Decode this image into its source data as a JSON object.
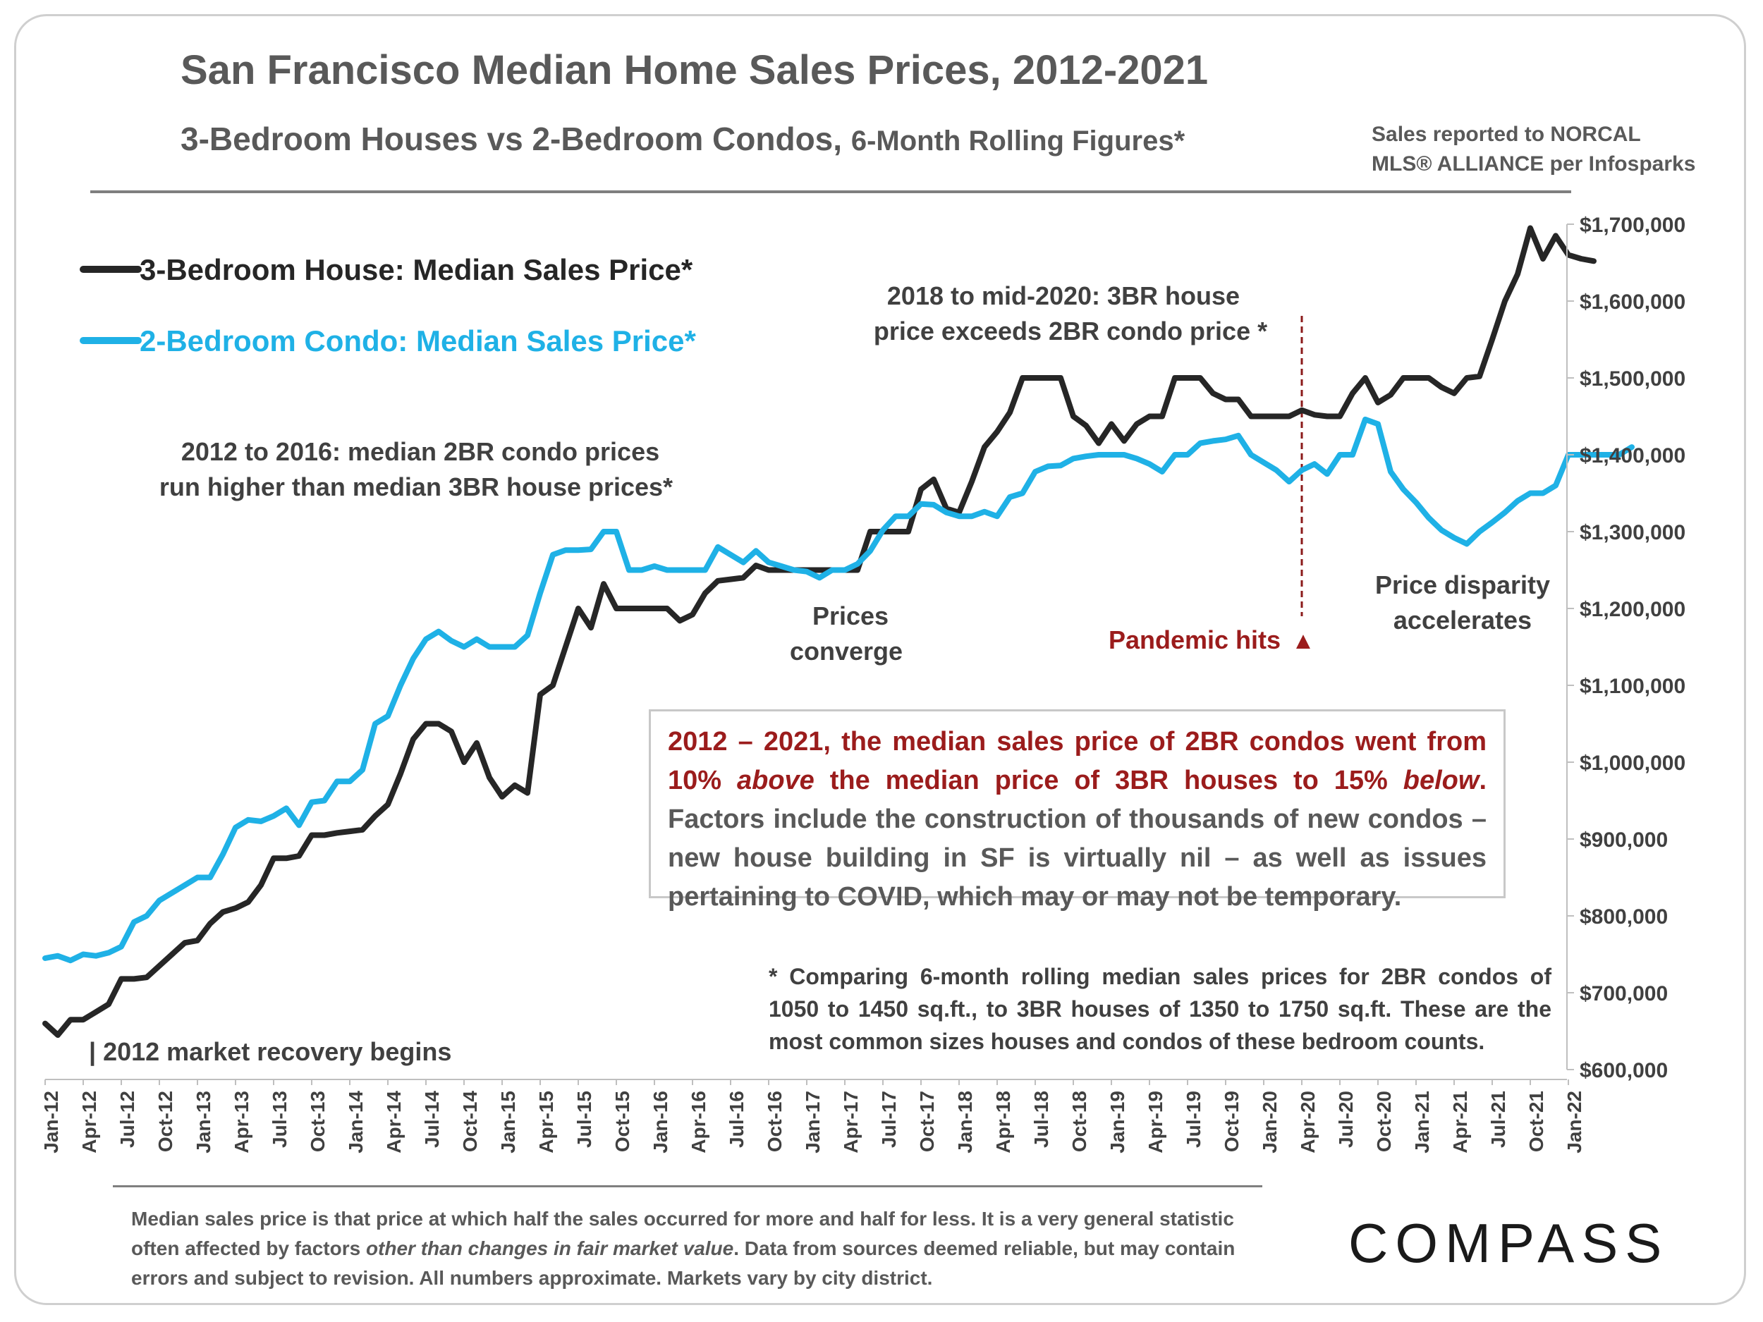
{
  "title": "San Francisco Median Home Sales Prices, 2012-2021",
  "subtitle_main": "3-Bedroom Houses vs 2-Bedroom Condos, ",
  "subtitle_small": "6-Month Rolling Figures*",
  "source_line1": "Sales reported to NORCAL",
  "source_line2": "MLS® ALLIANCE per Infosparks",
  "legend_house": "3-Bedroom House: Median Sales Price*",
  "legend_condo": "2-Bedroom Condo: Median Sales Price*",
  "annotations": {
    "condo_higher_1": "2012 to 2016: median 2BR condo prices",
    "condo_higher_2": "run higher than median 3BR house prices*",
    "house_exceeds_1": "2018 to mid-2020: 3BR house",
    "house_exceeds_2": "price exceeds 2BR condo price *",
    "converge_1": "Prices",
    "converge_2": "converge",
    "pandemic": "Pandemic hits",
    "pandemic_marker": "▲",
    "disparity_1": "Price disparity",
    "disparity_2": "accelerates",
    "recovery": "| 2012 market recovery begins"
  },
  "summary_box": {
    "red_part1": "2012 – 2021, the median sales price of 2BR condos went from 10% ",
    "red_above": "above",
    "red_part2": " the median price of 3BR houses to 15% ",
    "red_below": "below",
    "red_end": ".",
    "body": " Factors include the construction of thousands of new condos – new house building in SF is virtually nil – as well as issues pertaining to COVID, which may or may not be temporary."
  },
  "comparison_note": "* Comparing 6-month rolling median sales prices for 2BR condos of 1050 to 1450 sq.ft., to 3BR houses of 1350 to 1750 sq.ft. These are the most common sizes houses and condos of these bedroom counts.",
  "footnote_part1": "Median sales price is that price at which half the sales occurred for more and half for less. It is a very general statistic often affected by factors ",
  "footnote_italic": "other than changes in fair market value",
  "footnote_part2": ". Data from sources deemed reliable, but may contain errors and subject to revision. All numbers approximate. Markets vary by city district.",
  "logo": "COMPASS",
  "colors": {
    "house": "#262626",
    "condo": "#1fb1e6",
    "accent_red": "#9b1c1c",
    "pandemic_line": "#8b1a1a"
  },
  "chart_data": {
    "type": "line",
    "title": "San Francisco Median Home Sales Prices, 2012-2021",
    "xlabel": "",
    "ylabel": "",
    "ylim": [
      600000,
      1700000
    ],
    "yticks": [
      600000,
      700000,
      800000,
      900000,
      1000000,
      1100000,
      1200000,
      1300000,
      1400000,
      1500000,
      1600000,
      1700000
    ],
    "ytick_labels": [
      "$600,000",
      "$700,000",
      "$800,000",
      "$900,000",
      "$1,000,000",
      "$1,100,000",
      "$1,200,000",
      "$1,300,000",
      "$1,400,000",
      "$1,500,000",
      "$1,600,000",
      "$1,700,000"
    ],
    "x_tick_labels": [
      "Jan-12",
      "Apr-12",
      "Jul-12",
      "Oct-12",
      "Jan-13",
      "Apr-13",
      "Jul-13",
      "Oct-13",
      "Jan-14",
      "Apr-14",
      "Jul-14",
      "Oct-14",
      "Jan-15",
      "Apr-15",
      "Jul-15",
      "Oct-15",
      "Jan-16",
      "Apr-16",
      "Jul-16",
      "Oct-16",
      "Jan-17",
      "Apr-17",
      "Jul-17",
      "Oct-17",
      "Jan-18",
      "Apr-18",
      "Jul-18",
      "Oct-18",
      "Jan-19",
      "Apr-19",
      "Jul-19",
      "Oct-19",
      "Jan-20",
      "Apr-20",
      "Jul-20",
      "Oct-20",
      "Jan-21",
      "Apr-21",
      "Jul-21",
      "Oct-21",
      "Jan-22"
    ],
    "x_start": "Jan-12",
    "x_step": "1 month",
    "pandemic_month": "Apr-20",
    "series": [
      {
        "name": "3-Bedroom House: Median Sales Price*",
        "values": [
          660000,
          645000,
          665000,
          665000,
          675000,
          685000,
          718000,
          718000,
          720000,
          735000,
          750000,
          765000,
          768000,
          790000,
          805000,
          810000,
          818000,
          840000,
          875000,
          875000,
          878000,
          905000,
          905000,
          908000,
          910000,
          912000,
          930000,
          945000,
          985000,
          1030000,
          1050000,
          1050000,
          1040000,
          1000000,
          1025000,
          980000,
          955000,
          970000,
          960000,
          1088000,
          1100000,
          1150000,
          1200000,
          1175000,
          1232000,
          1200000,
          1200000,
          1200000,
          1200000,
          1200000,
          1184000,
          1192000,
          1220000,
          1236000,
          1238000,
          1240000,
          1256000,
          1250000,
          1250000,
          1250000,
          1250000,
          1250000,
          1250000,
          1250000,
          1250000,
          1300000,
          1300000,
          1300000,
          1300000,
          1355000,
          1368000,
          1330000,
          1325000,
          1365000,
          1410000,
          1430000,
          1455000,
          1500000,
          1500000,
          1500000,
          1500000,
          1450000,
          1438000,
          1415000,
          1440000,
          1418000,
          1440000,
          1450000,
          1450000,
          1500000,
          1500000,
          1500000,
          1480000,
          1472000,
          1472000,
          1450000,
          1450000,
          1450000,
          1450000,
          1458000,
          1452000,
          1450000,
          1450000,
          1480000,
          1500000,
          1468000,
          1478000,
          1500000,
          1500000,
          1500000,
          1488000,
          1480000,
          1500000,
          1502000,
          1550000,
          1600000,
          1635000,
          1695000,
          1655000,
          1685000,
          1660000,
          1655000,
          1652000
        ]
      },
      {
        "name": "2-Bedroom Condo: Median Sales Price*",
        "values": [
          745000,
          748000,
          742000,
          750000,
          748000,
          752000,
          760000,
          792000,
          800000,
          820000,
          830000,
          840000,
          850000,
          850000,
          880000,
          915000,
          925000,
          923000,
          930000,
          940000,
          918000,
          948000,
          950000,
          975000,
          975000,
          990000,
          1050000,
          1060000,
          1100000,
          1135000,
          1160000,
          1170000,
          1158000,
          1150000,
          1160000,
          1150000,
          1150000,
          1150000,
          1165000,
          1220000,
          1270000,
          1276000,
          1276000,
          1277000,
          1300000,
          1300000,
          1250000,
          1250000,
          1255000,
          1250000,
          1250000,
          1250000,
          1250000,
          1280000,
          1270000,
          1260000,
          1275000,
          1260000,
          1255000,
          1250000,
          1248000,
          1240000,
          1250000,
          1250000,
          1258000,
          1275000,
          1302000,
          1320000,
          1320000,
          1336000,
          1335000,
          1325000,
          1320000,
          1320000,
          1326000,
          1320000,
          1345000,
          1350000,
          1378000,
          1385000,
          1386000,
          1395000,
          1398000,
          1400000,
          1400000,
          1400000,
          1395000,
          1388000,
          1378000,
          1400000,
          1400000,
          1415000,
          1418000,
          1420000,
          1425000,
          1400000,
          1390000,
          1380000,
          1365000,
          1380000,
          1388000,
          1375000,
          1400000,
          1400000,
          1446000,
          1440000,
          1378000,
          1355000,
          1338000,
          1318000,
          1302000,
          1292000,
          1284000,
          1300000,
          1312000,
          1325000,
          1340000,
          1350000,
          1350000,
          1360000,
          1400000,
          1400000,
          1400000,
          1400000,
          1400000,
          1410000
        ]
      }
    ]
  }
}
